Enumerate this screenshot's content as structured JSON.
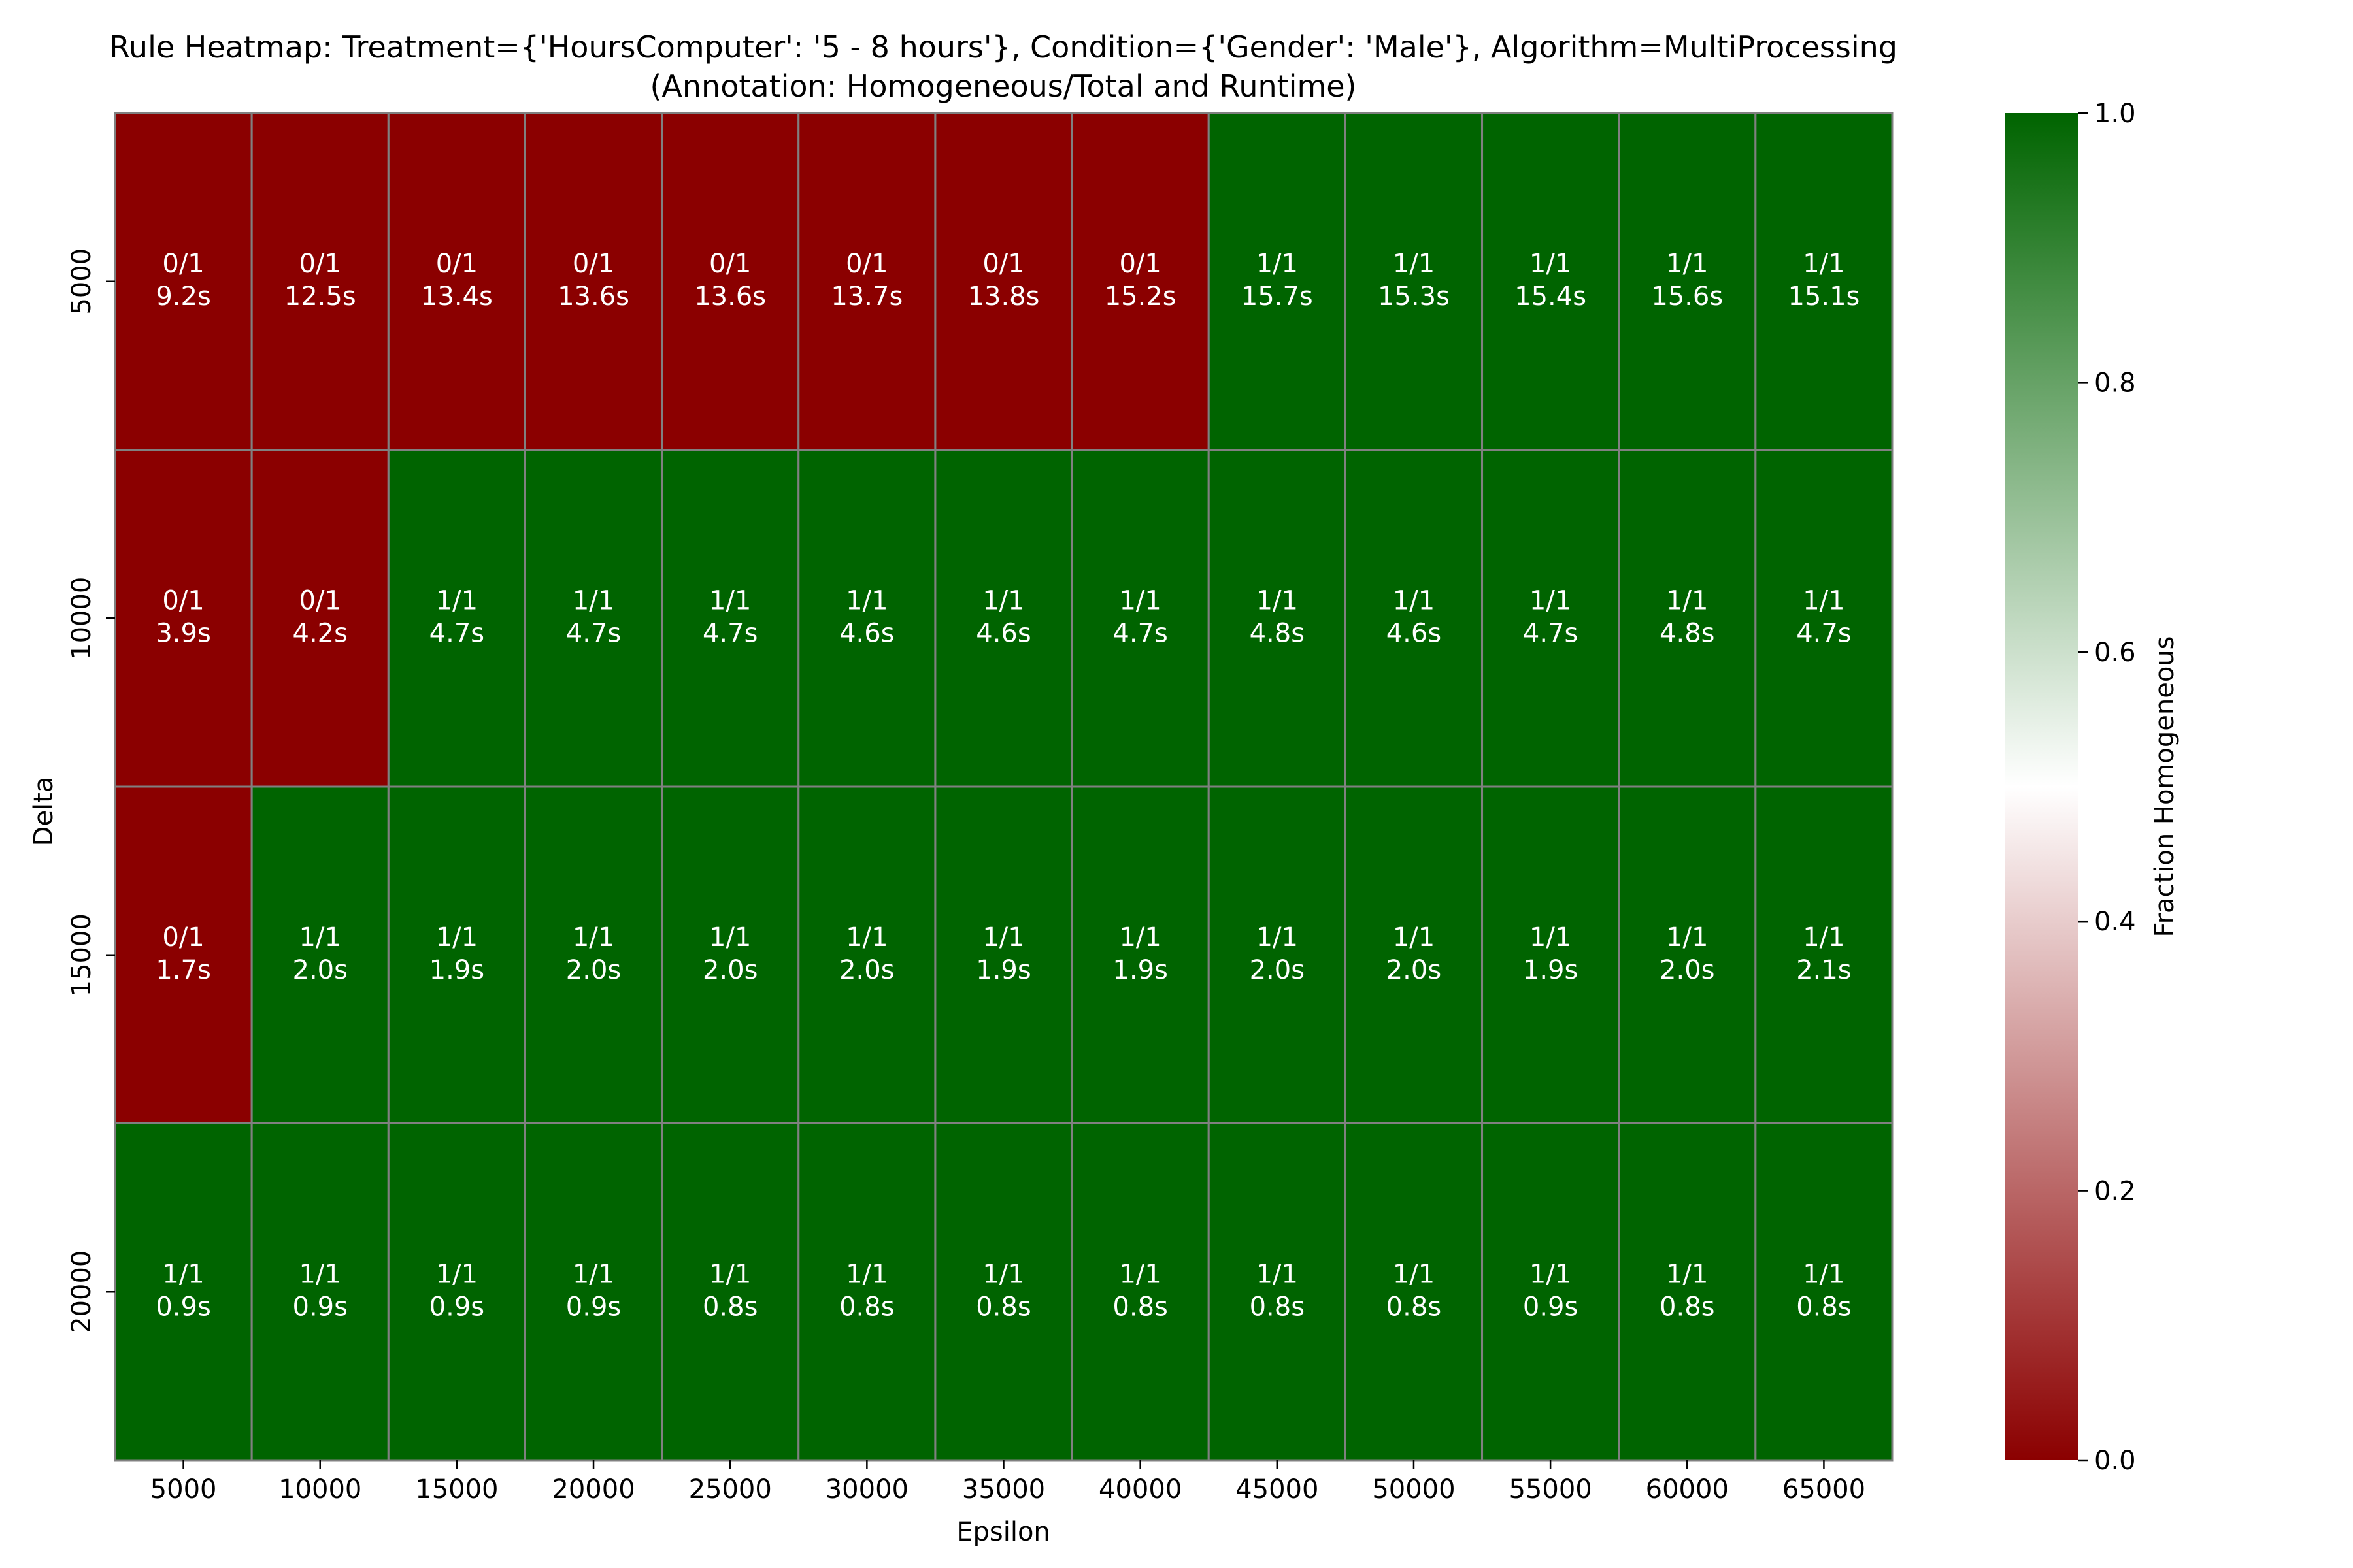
{
  "chart_data": {
    "type": "heatmap",
    "title_line1": "Rule Heatmap: Treatment={'HoursComputer': '5 - 8 hours'}, Condition={'Gender': 'Male'}, Algorithm=MultiProcessing",
    "title_line2": "(Annotation: Homogeneous/Total and Runtime)",
    "xlabel": "Epsilon",
    "ylabel": "Delta",
    "x_categories": [
      "5000",
      "10000",
      "15000",
      "20000",
      "25000",
      "30000",
      "35000",
      "40000",
      "45000",
      "50000",
      "55000",
      "60000",
      "65000"
    ],
    "y_categories": [
      "5000",
      "10000",
      "15000",
      "20000"
    ],
    "values": [
      [
        0,
        0,
        0,
        0,
        0,
        0,
        0,
        0,
        1,
        1,
        1,
        1,
        1
      ],
      [
        0,
        0,
        1,
        1,
        1,
        1,
        1,
        1,
        1,
        1,
        1,
        1,
        1
      ],
      [
        0,
        1,
        1,
        1,
        1,
        1,
        1,
        1,
        1,
        1,
        1,
        1,
        1
      ],
      [
        1,
        1,
        1,
        1,
        1,
        1,
        1,
        1,
        1,
        1,
        1,
        1,
        1
      ]
    ],
    "annotations": [
      [
        [
          "0/1",
          "9.2s"
        ],
        [
          "0/1",
          "12.5s"
        ],
        [
          "0/1",
          "13.4s"
        ],
        [
          "0/1",
          "13.6s"
        ],
        [
          "0/1",
          "13.6s"
        ],
        [
          "0/1",
          "13.7s"
        ],
        [
          "0/1",
          "13.8s"
        ],
        [
          "0/1",
          "15.2s"
        ],
        [
          "1/1",
          "15.7s"
        ],
        [
          "1/1",
          "15.3s"
        ],
        [
          "1/1",
          "15.4s"
        ],
        [
          "1/1",
          "15.6s"
        ],
        [
          "1/1",
          "15.1s"
        ]
      ],
      [
        [
          "0/1",
          "3.9s"
        ],
        [
          "0/1",
          "4.2s"
        ],
        [
          "1/1",
          "4.7s"
        ],
        [
          "1/1",
          "4.7s"
        ],
        [
          "1/1",
          "4.7s"
        ],
        [
          "1/1",
          "4.6s"
        ],
        [
          "1/1",
          "4.6s"
        ],
        [
          "1/1",
          "4.7s"
        ],
        [
          "1/1",
          "4.8s"
        ],
        [
          "1/1",
          "4.6s"
        ],
        [
          "1/1",
          "4.7s"
        ],
        [
          "1/1",
          "4.8s"
        ],
        [
          "1/1",
          "4.7s"
        ]
      ],
      [
        [
          "0/1",
          "1.7s"
        ],
        [
          "1/1",
          "2.0s"
        ],
        [
          "1/1",
          "1.9s"
        ],
        [
          "1/1",
          "2.0s"
        ],
        [
          "1/1",
          "2.0s"
        ],
        [
          "1/1",
          "2.0s"
        ],
        [
          "1/1",
          "1.9s"
        ],
        [
          "1/1",
          "1.9s"
        ],
        [
          "1/1",
          "2.0s"
        ],
        [
          "1/1",
          "2.0s"
        ],
        [
          "1/1",
          "1.9s"
        ],
        [
          "1/1",
          "2.0s"
        ],
        [
          "1/1",
          "2.1s"
        ]
      ],
      [
        [
          "1/1",
          "0.9s"
        ],
        [
          "1/1",
          "0.9s"
        ],
        [
          "1/1",
          "0.9s"
        ],
        [
          "1/1",
          "0.9s"
        ],
        [
          "1/1",
          "0.8s"
        ],
        [
          "1/1",
          "0.8s"
        ],
        [
          "1/1",
          "0.8s"
        ],
        [
          "1/1",
          "0.8s"
        ],
        [
          "1/1",
          "0.8s"
        ],
        [
          "1/1",
          "0.8s"
        ],
        [
          "1/1",
          "0.9s"
        ],
        [
          "1/1",
          "0.8s"
        ],
        [
          "1/1",
          "0.8s"
        ]
      ]
    ],
    "colorbar": {
      "label": "Fraction Homogeneous",
      "range": [
        0.0,
        1.0
      ],
      "ticks": [
        "0.0",
        "0.2",
        "0.4",
        "0.6",
        "0.8",
        "1.0"
      ],
      "colors": [
        "#8b0000",
        "#ffffff",
        "#006400"
      ]
    },
    "grid_line_color": "#808080"
  }
}
